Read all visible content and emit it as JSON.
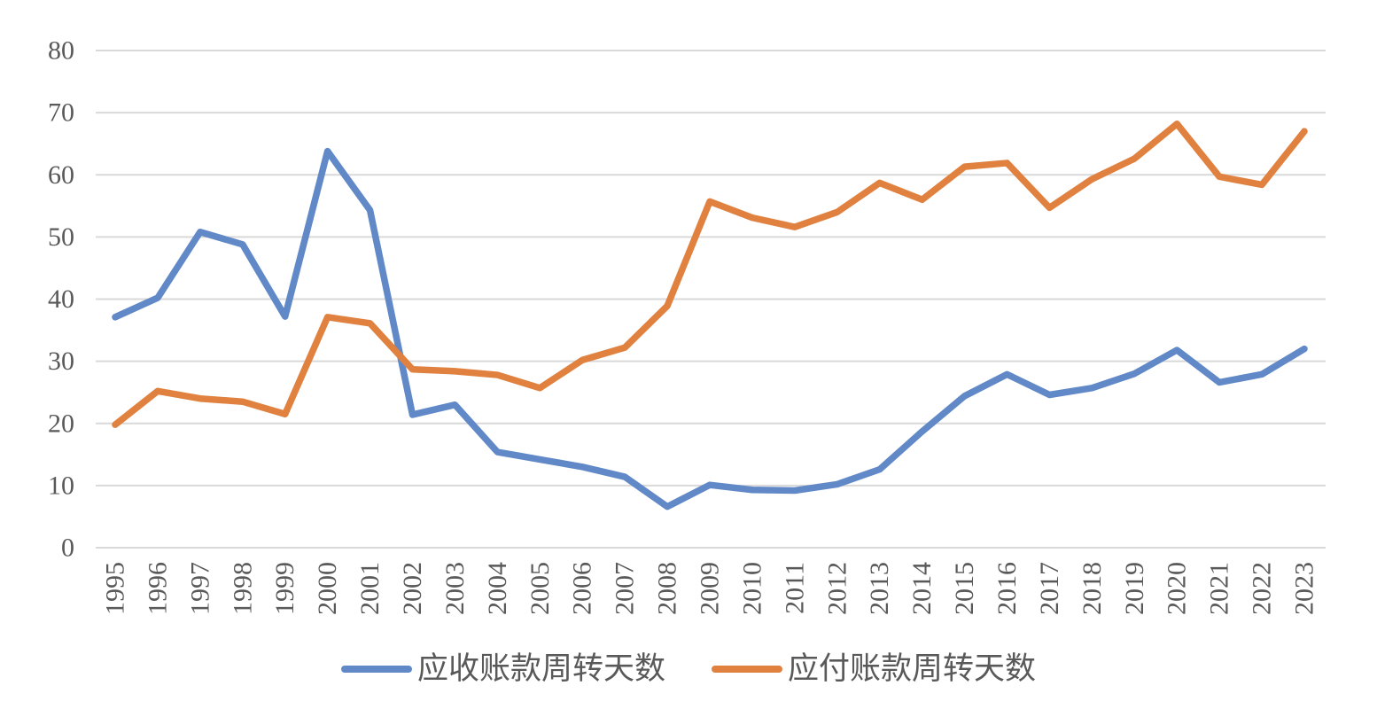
{
  "chart_data": {
    "type": "line",
    "title": "",
    "xlabel": "",
    "ylabel": "",
    "x": [
      "1995",
      "1996",
      "1997",
      "1998",
      "1999",
      "2000",
      "2001",
      "2002",
      "2003",
      "2004",
      "2005",
      "2006",
      "2007",
      "2008",
      "2009",
      "2010",
      "2011",
      "2012",
      "2013",
      "2014",
      "2015",
      "2016",
      "2017",
      "2018",
      "2019",
      "2020",
      "2021",
      "2022",
      "2023"
    ],
    "ylim": [
      0,
      80
    ],
    "yticks": [
      0,
      10,
      20,
      30,
      40,
      50,
      60,
      70,
      80
    ],
    "grid": "horizontal",
    "legend_position": "bottom",
    "series": [
      {
        "id": "receivable",
        "name": "应收账款周转天数",
        "color": "#6189C7",
        "values": [
          37.1,
          40.2,
          50.8,
          48.8,
          37.2,
          63.8,
          54.3,
          21.4,
          23.0,
          15.4,
          14.2,
          13.0,
          11.4,
          6.6,
          10.1,
          9.3,
          9.2,
          10.2,
          12.6,
          18.7,
          24.4,
          27.9,
          24.6,
          25.7,
          28.0,
          31.8,
          26.6,
          27.9,
          32.0
        ]
      },
      {
        "id": "payable",
        "name": "应付账款周转天数",
        "color": "#E0813F",
        "values": [
          19.8,
          25.2,
          24.0,
          23.5,
          21.5,
          37.1,
          36.1,
          28.7,
          28.4,
          27.8,
          25.7,
          30.2,
          32.2,
          38.9,
          55.7,
          53.1,
          51.6,
          54.0,
          58.7,
          56.0,
          61.3,
          61.9,
          54.7,
          59.3,
          62.6,
          68.2,
          59.7,
          58.4,
          67.0
        ]
      }
    ]
  },
  "styles": {
    "grid_color": "#D9D9D9",
    "axis_text_color": "#595959"
  }
}
